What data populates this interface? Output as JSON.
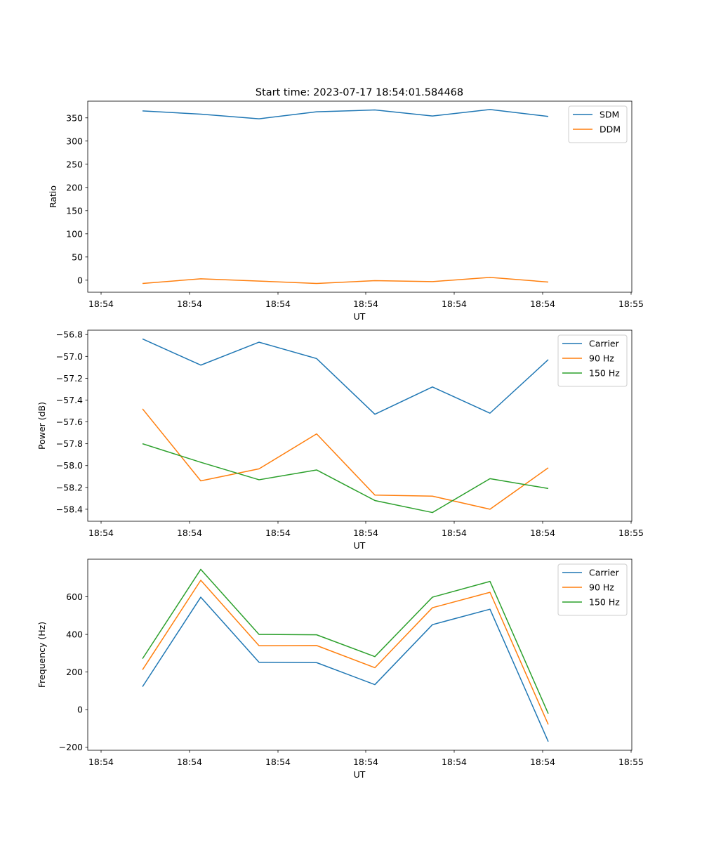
{
  "figure_title": "Start time: 2023-07-17 18:54:01.584468",
  "colors": {
    "blue": "#1f77b4",
    "orange": "#ff7f0e",
    "green": "#2ca02c"
  },
  "chart_data": [
    {
      "type": "line",
      "title": "Start time: 2023-07-17 18:54:01.584468",
      "xlabel": "UT",
      "ylabel": "Ratio",
      "x_tick_labels": [
        "18:54",
        "18:54",
        "18:54",
        "18:54",
        "18:54",
        "18:54",
        "18:55"
      ],
      "y_ticks": [
        0,
        50,
        100,
        150,
        200,
        250,
        300,
        350
      ],
      "ylim": [
        -26,
        386
      ],
      "legend_location": "top-right",
      "series": [
        {
          "name": "SDM",
          "color": "#1f77b4",
          "values": [
            365,
            358,
            348,
            363,
            367,
            354,
            368,
            353
          ]
        },
        {
          "name": "DDM",
          "color": "#ff7f0e",
          "values": [
            -7,
            3,
            -2,
            -7,
            -1,
            -3,
            6,
            -4
          ]
        }
      ]
    },
    {
      "type": "line",
      "title": "",
      "xlabel": "UT",
      "ylabel": "Power (dB)",
      "x_tick_labels": [
        "18:54",
        "18:54",
        "18:54",
        "18:54",
        "18:54",
        "18:54",
        "18:55"
      ],
      "y_ticks": [
        -56.8,
        -57.0,
        -57.2,
        -57.4,
        -57.6,
        -57.8,
        -58.0,
        -58.2,
        -58.4
      ],
      "y_tick_labels": [
        "−56.8",
        "−57.0",
        "−57.2",
        "−57.4",
        "−57.6",
        "−57.8",
        "−58.0",
        "−58.2",
        "−58.4"
      ],
      "ylim": [
        -58.51,
        -56.76
      ],
      "legend_location": "top-right",
      "series": [
        {
          "name": "Carrier",
          "color": "#1f77b4",
          "values": [
            -56.84,
            -57.08,
            -56.87,
            -57.02,
            -57.53,
            -57.28,
            -57.52,
            -57.03
          ]
        },
        {
          "name": "90 Hz",
          "color": "#ff7f0e",
          "values": [
            -57.48,
            -58.14,
            -58.03,
            -57.71,
            -58.27,
            -58.28,
            -58.4,
            -58.02
          ]
        },
        {
          "name": "150 Hz",
          "color": "#2ca02c",
          "values": [
            -57.8,
            -57.97,
            -58.13,
            -58.04,
            -58.32,
            -58.43,
            -58.12,
            -58.21
          ]
        }
      ]
    },
    {
      "type": "line",
      "title": "",
      "xlabel": "UT",
      "ylabel": "Frequency (Hz)",
      "x_tick_labels": [
        "18:54",
        "18:54",
        "18:54",
        "18:54",
        "18:54",
        "18:54",
        "18:55"
      ],
      "y_ticks": [
        -200,
        0,
        200,
        400,
        600
      ],
      "y_tick_labels": [
        "−200",
        "0",
        "200",
        "400",
        "600"
      ],
      "ylim": [
        -216,
        800
      ],
      "legend_location": "top-right",
      "series": [
        {
          "name": "Carrier",
          "color": "#1f77b4",
          "values": [
            122,
            598,
            252,
            250,
            133,
            452,
            534,
            -170
          ]
        },
        {
          "name": "90 Hz",
          "color": "#ff7f0e",
          "values": [
            212,
            688,
            340,
            341,
            223,
            542,
            624,
            -79
          ]
        },
        {
          "name": "150 Hz",
          "color": "#2ca02c",
          "values": [
            271,
            746,
            400,
            398,
            282,
            598,
            682,
            -21
          ]
        }
      ]
    }
  ]
}
